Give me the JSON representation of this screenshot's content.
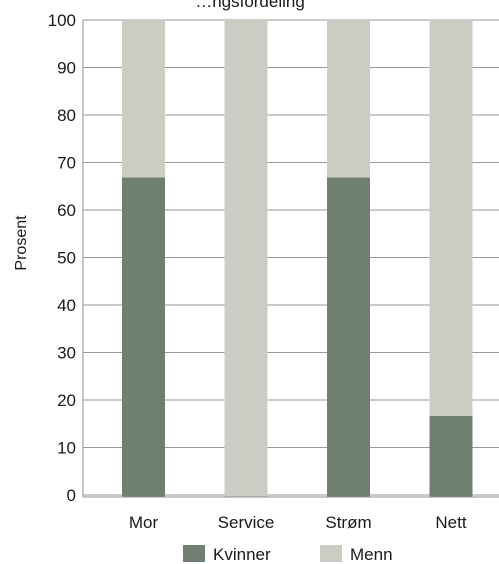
{
  "chart_data": {
    "type": "bar",
    "stacked": true,
    "title": "…ngsfordeling",
    "xlabel": "",
    "ylabel": "Prosent",
    "y_tick_labels": [
      "100",
      "90",
      "80",
      "70",
      "60",
      "50",
      "40",
      "30",
      "20",
      "10",
      "0"
    ],
    "grid": true,
    "legend_position": "bottom",
    "categories": [
      "Mor",
      "Service",
      "Strøm",
      "Nett"
    ],
    "series": [
      {
        "name": "Kvinner",
        "color": "#6f8073",
        "values": [
          67,
          0,
          67,
          17
        ]
      },
      {
        "name": "Menn",
        "color": "#cdccc4",
        "values": [
          33,
          100,
          33,
          83
        ]
      }
    ]
  }
}
